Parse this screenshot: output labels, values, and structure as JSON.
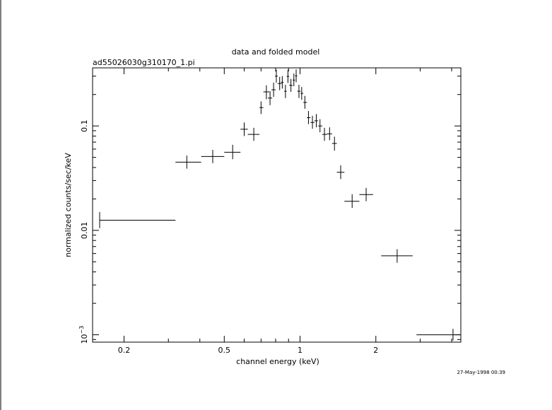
{
  "chart_data": {
    "type": "scatter",
    "title": "data and folded model",
    "subtitle": "ad55026030g310170_1.pi",
    "xlabel": "channel energy (keV)",
    "ylabel": "normalized counts/sec/keV",
    "timestamp": "27-May-1998 00:39",
    "xscale": "log",
    "yscale": "log",
    "xlim": [
      0.15,
      4.35
    ],
    "ylim": [
      0.00085,
      0.36
    ],
    "xticks": [
      {
        "value": 0.2,
        "label": "0.2"
      },
      {
        "value": 0.5,
        "label": "0.5"
      },
      {
        "value": 1,
        "label": "1"
      },
      {
        "value": 2,
        "label": "2"
      }
    ],
    "yticks": [
      {
        "value": 0.001,
        "label_base": "10",
        "label_exp": "−3"
      },
      {
        "value": 0.01,
        "label_base": "0.01",
        "label_exp": ""
      },
      {
        "value": 0.1,
        "label_base": "0.1",
        "label_exp": ""
      }
    ],
    "grid": false,
    "points": [
      {
        "x": 0.16,
        "xlo": 0.16,
        "xhi": 0.32,
        "y": 0.0125,
        "ylo": 0.0105,
        "yhi": 0.015
      },
      {
        "x": 0.355,
        "xlo": 0.32,
        "xhi": 0.405,
        "y": 0.045,
        "ylo": 0.039,
        "yhi": 0.052
      },
      {
        "x": 0.45,
        "xlo": 0.405,
        "xhi": 0.5,
        "y": 0.051,
        "ylo": 0.044,
        "yhi": 0.059
      },
      {
        "x": 0.54,
        "xlo": 0.5,
        "xhi": 0.58,
        "y": 0.056,
        "ylo": 0.048,
        "yhi": 0.066
      },
      {
        "x": 0.6,
        "xlo": 0.58,
        "xhi": 0.62,
        "y": 0.093,
        "ylo": 0.08,
        "yhi": 0.108
      },
      {
        "x": 0.655,
        "xlo": 0.62,
        "xhi": 0.69,
        "y": 0.083,
        "ylo": 0.072,
        "yhi": 0.096
      },
      {
        "x": 0.7,
        "xlo": 0.69,
        "xhi": 0.715,
        "y": 0.15,
        "ylo": 0.13,
        "yhi": 0.172
      },
      {
        "x": 0.735,
        "xlo": 0.715,
        "xhi": 0.755,
        "y": 0.212,
        "ylo": 0.18,
        "yhi": 0.245
      },
      {
        "x": 0.76,
        "xlo": 0.745,
        "xhi": 0.775,
        "y": 0.185,
        "ylo": 0.158,
        "yhi": 0.215
      },
      {
        "x": 0.785,
        "xlo": 0.77,
        "xhi": 0.8,
        "y": 0.222,
        "ylo": 0.19,
        "yhi": 0.26
      },
      {
        "x": 0.805,
        "xlo": 0.795,
        "xhi": 0.815,
        "y": 0.3,
        "ylo": 0.26,
        "yhi": 0.345
      },
      {
        "x": 0.83,
        "xlo": 0.815,
        "xhi": 0.845,
        "y": 0.255,
        "ylo": 0.22,
        "yhi": 0.295
      },
      {
        "x": 0.85,
        "xlo": 0.84,
        "xhi": 0.86,
        "y": 0.262,
        "ylo": 0.228,
        "yhi": 0.3
      },
      {
        "x": 0.875,
        "xlo": 0.865,
        "xhi": 0.885,
        "y": 0.215,
        "ylo": 0.185,
        "yhi": 0.248
      },
      {
        "x": 0.895,
        "xlo": 0.885,
        "xhi": 0.905,
        "y": 0.298,
        "ylo": 0.258,
        "yhi": 0.345
      },
      {
        "x": 0.92,
        "xlo": 0.905,
        "xhi": 0.935,
        "y": 0.245,
        "ylo": 0.212,
        "yhi": 0.282
      },
      {
        "x": 0.945,
        "xlo": 0.935,
        "xhi": 0.955,
        "y": 0.275,
        "ylo": 0.24,
        "yhi": 0.318
      },
      {
        "x": 0.965,
        "xlo": 0.955,
        "xhi": 0.975,
        "y": 0.302,
        "ylo": 0.262,
        "yhi": 0.348
      },
      {
        "x": 0.99,
        "xlo": 0.975,
        "xhi": 1.005,
        "y": 0.215,
        "ylo": 0.185,
        "yhi": 0.248
      },
      {
        "x": 1.015,
        "xlo": 1.005,
        "xhi": 1.03,
        "y": 0.205,
        "ylo": 0.178,
        "yhi": 0.236
      },
      {
        "x": 1.045,
        "xlo": 1.03,
        "xhi": 1.065,
        "y": 0.168,
        "ylo": 0.146,
        "yhi": 0.194
      },
      {
        "x": 1.08,
        "xlo": 1.065,
        "xhi": 1.1,
        "y": 0.12,
        "ylo": 0.104,
        "yhi": 0.139
      },
      {
        "x": 1.12,
        "xlo": 1.1,
        "xhi": 1.14,
        "y": 0.108,
        "ylo": 0.094,
        "yhi": 0.125
      },
      {
        "x": 1.16,
        "xlo": 1.14,
        "xhi": 1.18,
        "y": 0.112,
        "ylo": 0.097,
        "yhi": 0.13
      },
      {
        "x": 1.2,
        "xlo": 1.18,
        "xhi": 1.225,
        "y": 0.1,
        "ylo": 0.087,
        "yhi": 0.116
      },
      {
        "x": 1.25,
        "xlo": 1.225,
        "xhi": 1.28,
        "y": 0.083,
        "ylo": 0.072,
        "yhi": 0.096
      },
      {
        "x": 1.31,
        "xlo": 1.28,
        "xhi": 1.34,
        "y": 0.084,
        "ylo": 0.073,
        "yhi": 0.097
      },
      {
        "x": 1.37,
        "xlo": 1.34,
        "xhi": 1.4,
        "y": 0.068,
        "ylo": 0.058,
        "yhi": 0.079
      },
      {
        "x": 1.45,
        "xlo": 1.4,
        "xhi": 1.5,
        "y": 0.036,
        "ylo": 0.031,
        "yhi": 0.042
      },
      {
        "x": 1.61,
        "xlo": 1.5,
        "xhi": 1.72,
        "y": 0.019,
        "ylo": 0.0164,
        "yhi": 0.0222
      },
      {
        "x": 1.83,
        "xlo": 1.72,
        "xhi": 1.95,
        "y": 0.022,
        "ylo": 0.019,
        "yhi": 0.0255
      },
      {
        "x": 2.43,
        "xlo": 2.1,
        "xhi": 2.8,
        "y": 0.0057,
        "ylo": 0.0049,
        "yhi": 0.0066
      },
      {
        "x": 4.05,
        "xlo": 2.9,
        "xhi": 4.35,
        "y": 0.001,
        "ylo": 0.00088,
        "yhi": 0.00114
      }
    ]
  }
}
